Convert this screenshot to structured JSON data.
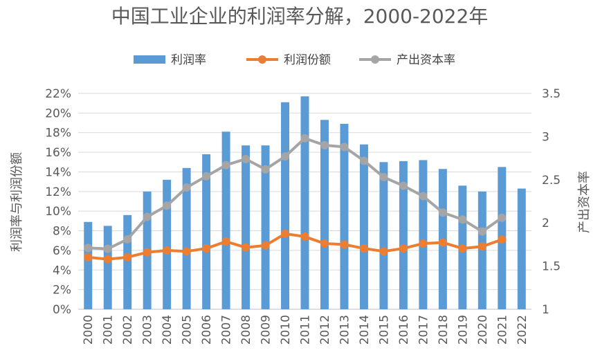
{
  "chart_data": {
    "type": "bar+line",
    "title": "中国工业企业的利润率分解，2000-2022年",
    "categories": [
      "2000",
      "2001",
      "2002",
      "2003",
      "2004",
      "2005",
      "2006",
      "2007",
      "2008",
      "2009",
      "2010",
      "2011",
      "2012",
      "2013",
      "2014",
      "2015",
      "2016",
      "2017",
      "2018",
      "2019",
      "2020",
      "2021",
      "2022"
    ],
    "series": [
      {
        "name": "利润率",
        "type": "bar",
        "axis": "left",
        "color": "#5B9BD5",
        "values": [
          8.9,
          8.5,
          9.6,
          12.0,
          13.2,
          14.4,
          15.8,
          18.1,
          16.7,
          16.7,
          21.1,
          21.7,
          19.3,
          18.9,
          16.8,
          15.0,
          15.1,
          15.2,
          14.3,
          12.6,
          12.0,
          14.5,
          12.3
        ]
      },
      {
        "name": "利润份额",
        "type": "line",
        "axis": "left",
        "color": "#ED7D31",
        "values": [
          5.3,
          5.1,
          5.3,
          5.8,
          6.0,
          5.9,
          6.2,
          6.9,
          6.3,
          6.5,
          7.7,
          7.4,
          6.7,
          6.6,
          6.2,
          5.9,
          6.2,
          6.7,
          6.8,
          6.2,
          6.4,
          7.1,
          null
        ]
      },
      {
        "name": "产出资本率",
        "type": "line",
        "axis": "right",
        "color": "#A5A5A5",
        "values": [
          1.71,
          1.7,
          1.81,
          2.07,
          2.2,
          2.41,
          2.54,
          2.67,
          2.74,
          2.62,
          2.77,
          2.98,
          2.9,
          2.88,
          2.72,
          2.53,
          2.43,
          2.31,
          2.12,
          2.04,
          1.9,
          2.06,
          null
        ]
      }
    ],
    "left_axis": {
      "label": "利润率与利润份额",
      "min": 0,
      "max": 22,
      "step": 2,
      "tick_labels": [
        "0%",
        "2%",
        "4%",
        "6%",
        "8%",
        "10%",
        "12%",
        "14%",
        "16%",
        "18%",
        "20%",
        "22%"
      ]
    },
    "right_axis": {
      "label": "产出资本率",
      "min": 1,
      "max": 3.5,
      "step": 0.5,
      "tick_labels": [
        "1",
        "1.5",
        "2",
        "2.5",
        "3",
        "3.5"
      ]
    },
    "legend_position": "top",
    "grid": true
  }
}
